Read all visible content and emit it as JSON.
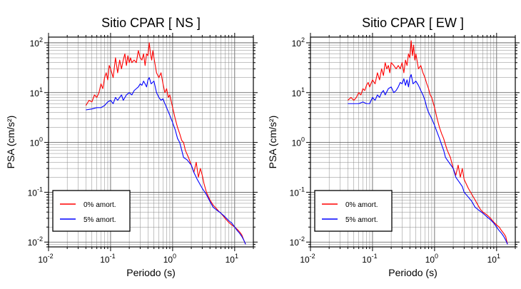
{
  "chart_data": [
    {
      "type": "line",
      "title": "Sitio CPAR [ NS ]",
      "xlabel": "Periodo (s)",
      "ylabel": "PSA (cm/s²)",
      "xscale": "log",
      "yscale": "log",
      "xlim": [
        0.01,
        20
      ],
      "ylim": [
        0.008,
        130
      ],
      "x_ticks": [
        0.01,
        0.1,
        1,
        10
      ],
      "y_ticks": [
        0.01,
        0.1,
        1,
        10,
        100
      ],
      "grid": true,
      "legend_position": "bottom-left",
      "series": [
        {
          "name": "0% amort.",
          "color": "#ff0000",
          "x": [
            0.04,
            0.045,
            0.05,
            0.055,
            0.06,
            0.065,
            0.07,
            0.075,
            0.08,
            0.085,
            0.09,
            0.095,
            0.1,
            0.11,
            0.12,
            0.13,
            0.14,
            0.15,
            0.16,
            0.17,
            0.18,
            0.19,
            0.2,
            0.21,
            0.22,
            0.24,
            0.26,
            0.28,
            0.3,
            0.32,
            0.34,
            0.36,
            0.38,
            0.4,
            0.42,
            0.44,
            0.46,
            0.48,
            0.5,
            0.55,
            0.6,
            0.65,
            0.7,
            0.75,
            0.8,
            0.85,
            0.9,
            1.0,
            1.1,
            1.2,
            1.3,
            1.4,
            1.5,
            1.6,
            1.8,
            2.0,
            2.2,
            2.4,
            2.6,
            2.8,
            3.0,
            3.2,
            3.5,
            3.8,
            4.0,
            4.5,
            5.0,
            5.5,
            6.0,
            7.0,
            8.0,
            9.0,
            10.0,
            11.0,
            12.0,
            13.0,
            14.0,
            15.0
          ],
          "values": [
            5.5,
            7,
            6.5,
            9,
            8,
            10,
            15,
            12,
            20,
            25,
            18,
            35,
            30,
            20,
            50,
            25,
            45,
            30,
            45,
            60,
            35,
            55,
            40,
            50,
            40,
            45,
            40,
            70,
            50,
            45,
            60,
            35,
            60,
            55,
            100,
            60,
            45,
            70,
            50,
            25,
            20,
            25,
            15,
            10,
            12,
            8,
            9,
            5,
            3,
            2,
            1.5,
            1.1,
            1.0,
            0.7,
            0.5,
            0.35,
            0.25,
            0.4,
            0.2,
            0.3,
            0.22,
            0.15,
            0.1,
            0.08,
            0.07,
            0.055,
            0.048,
            0.042,
            0.038,
            0.03,
            0.025,
            0.022,
            0.02,
            0.018,
            0.016,
            0.014,
            0.011,
            0.009
          ]
        },
        {
          "name": "5% amort.",
          "color": "#0000ff",
          "x": [
            0.04,
            0.05,
            0.06,
            0.07,
            0.08,
            0.09,
            0.1,
            0.11,
            0.12,
            0.13,
            0.14,
            0.15,
            0.16,
            0.18,
            0.2,
            0.22,
            0.24,
            0.26,
            0.28,
            0.3,
            0.32,
            0.34,
            0.36,
            0.38,
            0.4,
            0.42,
            0.45,
            0.5,
            0.55,
            0.6,
            0.65,
            0.7,
            0.75,
            0.8,
            0.9,
            1.0,
            1.1,
            1.2,
            1.3,
            1.4,
            1.5,
            1.7,
            2.0,
            2.2,
            2.5,
            2.8,
            3.0,
            3.5,
            4.0,
            4.5,
            5.0,
            6.0,
            7.0,
            8.0,
            9.0,
            10.0,
            11.0,
            12.0,
            13.0,
            14.0,
            15.0
          ],
          "values": [
            4.5,
            4.7,
            5,
            5,
            5.5,
            6.5,
            7,
            6,
            8,
            7,
            8,
            9,
            7,
            9,
            10,
            9,
            11,
            12,
            13,
            15,
            14,
            17,
            15,
            13,
            18,
            20,
            15,
            17,
            10,
            8,
            7,
            7.5,
            6,
            5,
            3.5,
            2.5,
            1.8,
            1.2,
            1.0,
            0.7,
            0.5,
            0.45,
            0.35,
            0.25,
            0.18,
            0.14,
            0.12,
            0.09,
            0.065,
            0.05,
            0.045,
            0.038,
            0.032,
            0.027,
            0.024,
            0.02,
            0.017,
            0.015,
            0.013,
            0.011,
            0.009
          ]
        }
      ]
    },
    {
      "type": "line",
      "title": "Sitio CPAR [ EW ]",
      "xlabel": "Periodo (s)",
      "ylabel": "PSA (cm/s²)",
      "xscale": "log",
      "yscale": "log",
      "xlim": [
        0.01,
        20
      ],
      "ylim": [
        0.008,
        130
      ],
      "x_ticks": [
        0.01,
        0.1,
        1,
        10
      ],
      "y_ticks": [
        0.01,
        0.1,
        1,
        10,
        100
      ],
      "grid": true,
      "legend_position": "bottom-left",
      "series": [
        {
          "name": "0% amort.",
          "color": "#ff0000",
          "x": [
            0.04,
            0.045,
            0.05,
            0.055,
            0.06,
            0.065,
            0.07,
            0.075,
            0.08,
            0.085,
            0.09,
            0.1,
            0.11,
            0.12,
            0.13,
            0.14,
            0.15,
            0.16,
            0.17,
            0.18,
            0.19,
            0.2,
            0.22,
            0.24,
            0.26,
            0.28,
            0.3,
            0.32,
            0.34,
            0.36,
            0.38,
            0.4,
            0.42,
            0.44,
            0.46,
            0.48,
            0.5,
            0.55,
            0.6,
            0.65,
            0.7,
            0.75,
            0.8,
            0.85,
            0.9,
            1.0,
            1.1,
            1.2,
            1.3,
            1.4,
            1.5,
            1.6,
            1.8,
            2.0,
            2.2,
            2.4,
            2.6,
            2.8,
            3.0,
            3.5,
            4.0,
            4.5,
            5.0,
            5.5,
            6.0,
            7.0,
            8.0,
            9.0,
            10.0,
            11.0,
            12.0,
            13.0,
            14.0,
            15.0
          ],
          "values": [
            7,
            8,
            7,
            8,
            10,
            9,
            12,
            11,
            14,
            16,
            13,
            18,
            15,
            25,
            18,
            30,
            22,
            40,
            30,
            35,
            25,
            40,
            35,
            30,
            35,
            30,
            40,
            25,
            45,
            35,
            60,
            50,
            110,
            55,
            90,
            45,
            60,
            30,
            35,
            25,
            20,
            15,
            12,
            9,
            8,
            5,
            3,
            2,
            1.5,
            1.2,
            0.9,
            0.7,
            0.5,
            0.3,
            0.22,
            0.35,
            0.2,
            0.3,
            0.18,
            0.12,
            0.09,
            0.07,
            0.055,
            0.045,
            0.04,
            0.035,
            0.03,
            0.025,
            0.022,
            0.02,
            0.017,
            0.015,
            0.013,
            0.009
          ]
        },
        {
          "name": "5% amort.",
          "color": "#0000ff",
          "x": [
            0.04,
            0.05,
            0.06,
            0.07,
            0.08,
            0.09,
            0.1,
            0.11,
            0.12,
            0.13,
            0.14,
            0.15,
            0.16,
            0.18,
            0.2,
            0.22,
            0.24,
            0.26,
            0.28,
            0.3,
            0.32,
            0.34,
            0.36,
            0.38,
            0.4,
            0.42,
            0.45,
            0.5,
            0.55,
            0.6,
            0.65,
            0.7,
            0.75,
            0.8,
            0.9,
            1.0,
            1.1,
            1.2,
            1.3,
            1.4,
            1.5,
            1.7,
            2.0,
            2.2,
            2.5,
            2.8,
            3.0,
            3.5,
            4.0,
            4.5,
            5.0,
            6.0,
            7.0,
            8.0,
            9.0,
            10.0,
            11.0,
            12.0,
            13.0,
            14.0,
            15.0
          ],
          "values": [
            6,
            6,
            6,
            6.5,
            6,
            6,
            8,
            7,
            9,
            8,
            10,
            11,
            9,
            12,
            13,
            10,
            11,
            13,
            16,
            15,
            19,
            14,
            18,
            13,
            20,
            23,
            15,
            17,
            14,
            11,
            9,
            7,
            5,
            4,
            3,
            2.2,
            1.6,
            1.2,
            0.9,
            0.7,
            0.5,
            0.4,
            0.3,
            0.2,
            0.16,
            0.13,
            0.1,
            0.08,
            0.065,
            0.05,
            0.045,
            0.038,
            0.032,
            0.028,
            0.024,
            0.02,
            0.017,
            0.015,
            0.013,
            0.011,
            0.009
          ]
        }
      ]
    }
  ]
}
